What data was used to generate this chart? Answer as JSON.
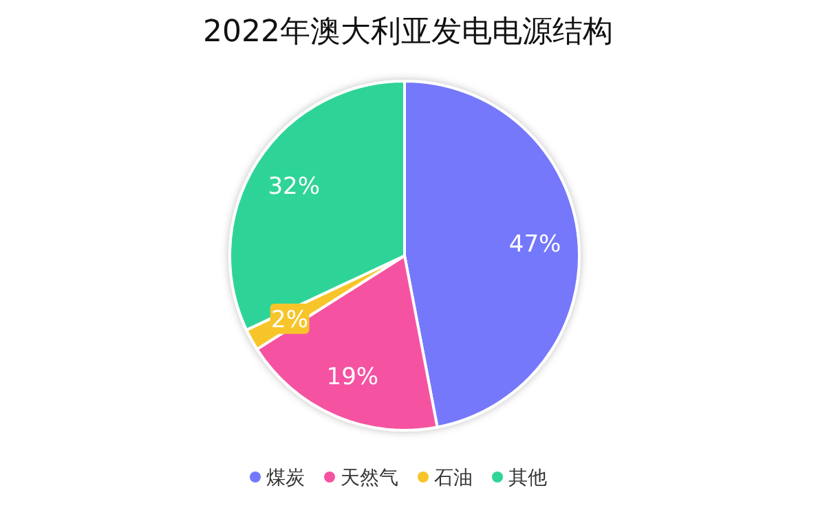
{
  "chart_data": {
    "type": "pie",
    "title": "2022年澳大利亚发电电源结构",
    "categories": [
      "煤炭",
      "天然气",
      "石油",
      "其他"
    ],
    "values": [
      47,
      19,
      2,
      32
    ],
    "colors": [
      "#7478fb",
      "#f553a2",
      "#f7c52a",
      "#2fd497"
    ],
    "value_labels": [
      "47%",
      "19%",
      "2%",
      "32%"
    ],
    "legend": "bottom"
  }
}
